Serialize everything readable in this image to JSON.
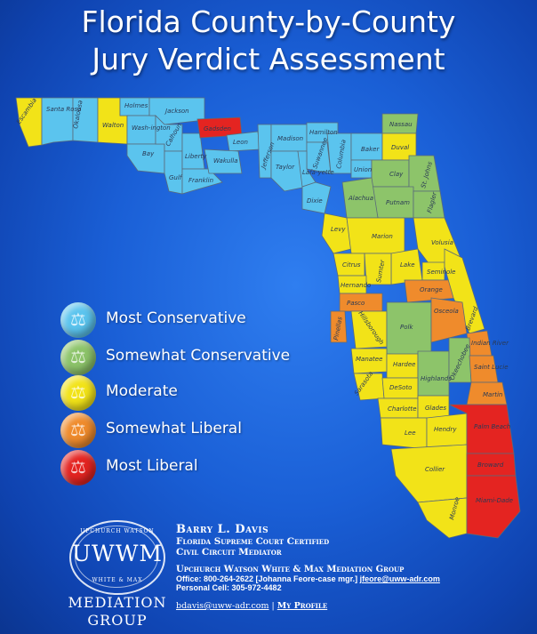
{
  "title": {
    "line1": "Florida County-by-County",
    "line2": "Jury Verdict Assessment"
  },
  "colors": {
    "most_conservative": "#5bc4ee",
    "somewhat_conservative": "#8dc46a",
    "moderate": "#f2e318",
    "somewhat_liberal": "#ef8b2c",
    "most_liberal": "#e42421",
    "water": "#1a5fd6"
  },
  "legend": {
    "items": [
      {
        "label": "Most Conservative",
        "color": "#5bc4ee"
      },
      {
        "label": "Somewhat Conservative",
        "color": "#8dc46a"
      },
      {
        "label": "Moderate",
        "color": "#f2e318"
      },
      {
        "label": "Somewhat Liberal",
        "color": "#ef8b2c"
      },
      {
        "label": "Most Liberal",
        "color": "#e42421"
      }
    ]
  },
  "counties": {
    "escambia": "Escambia",
    "santa_rosa": "Santa Rosa",
    "okaloosa": "Okaloosa",
    "walton": "Walton",
    "holmes": "Holmes",
    "washington": "Wash-ington",
    "jackson": "Jackson",
    "bay": "Bay",
    "calhoun": "Calhoun",
    "gulf": "Gulf",
    "liberty": "Liberty",
    "franklin": "Franklin",
    "gadsden": "Gadsden",
    "leon": "Leon",
    "wakulla": "Wakulla",
    "jefferson": "Jefferson",
    "madison": "Madison",
    "taylor": "Taylor",
    "hamilton": "Hamilton",
    "suwannee": "Suwannee",
    "lafayette": "Lafa-yette",
    "dixie": "Dixie",
    "columbia": "Columbia",
    "baker": "Baker",
    "union": "Union",
    "nassau": "Nassau",
    "duval": "Duval",
    "clay": "Clay",
    "st_johns": "St. Johns",
    "putnam": "Putnam",
    "alachua": "Alachua",
    "flagler": "Flagler",
    "levy": "Levy",
    "marion": "Marion",
    "volusia": "Volusia",
    "citrus": "Citrus",
    "lake": "Lake",
    "sumter": "Sumter",
    "hernando": "Hernando",
    "seminole": "Seminole",
    "orange": "Orange",
    "pasco": "Pasco",
    "pinellas": "Pinellas",
    "hillsborough": "Hillsborough",
    "polk": "Polk",
    "osceola": "Osceola",
    "brevard": "Brevard",
    "indian_river": "Indian River",
    "manatee": "Manatee",
    "hardee": "Hardee",
    "highlands": "Highlands",
    "okeechobee": "Okeechobee",
    "st_lucie": "Saint Lucie",
    "sarasota": "Sarasota",
    "desoto": "DeSoto",
    "martin": "Martin",
    "charlotte": "Charlotte",
    "glades": "Glades",
    "lee": "Lee",
    "hendry": "Hendry",
    "palm_beach": "Palm Beach",
    "collier": "Collier",
    "broward": "Broward",
    "monroe": "Monroe",
    "miami_dade": "Miami-Dade"
  },
  "logo": {
    "arc_top": "UPCHURCH WATSON",
    "mark": "UWWM",
    "arc_bottom": "WHITE & MAX",
    "line1": "MEDIATION",
    "line2": "GROUP"
  },
  "contact": {
    "name": "Barry L. Davis",
    "cred1": "Florida Supreme Court Certified",
    "cred2": "Civil Circuit Mediator",
    "group": "Upchurch Watson White & Max Mediation Group",
    "office_prefix": "Office: 800-264-2622 [Johanna Feore-case mgr.]",
    "office_email": "jfeore@uww-adr.com",
    "cell": "Personal Cell: 305-972-4482",
    "email": "bdavis@uww-adr.com",
    "separator": "|",
    "profile": "My Profile"
  }
}
